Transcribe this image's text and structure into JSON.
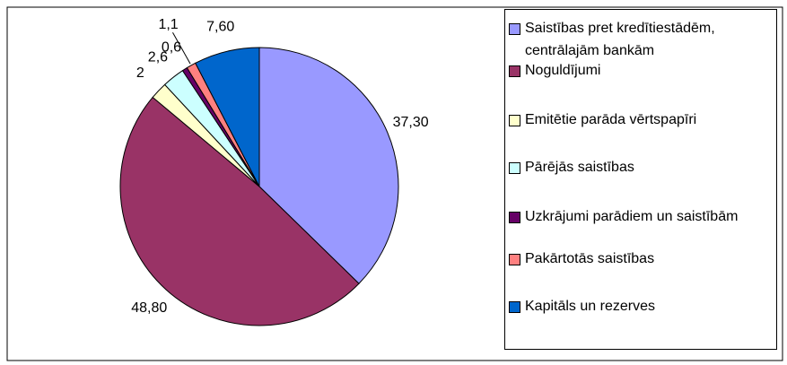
{
  "chart_data": {
    "type": "pie",
    "categories": [
      "Saistības pret kredītiestādēm, centrālajām bankām",
      "Noguldījumi",
      "Emitētie parāda vērtspapīri",
      "Pārējās saistības",
      "Uzkrājumi parādiem un saistībām",
      "Pakārtotās saistības",
      "Kapitāls un rezerves"
    ],
    "values": [
      37.3,
      48.8,
      2,
      2.6,
      0.6,
      1.1,
      7.6
    ],
    "value_labels": [
      "37,30",
      "48,80",
      "2",
      "2,6",
      "0,6",
      "1,1",
      "7,60"
    ],
    "colors": [
      "#9999ff",
      "#993366",
      "#ffffcc",
      "#ccffff",
      "#660066",
      "#ff8080",
      "#0066cc"
    ],
    "legend": "right"
  }
}
